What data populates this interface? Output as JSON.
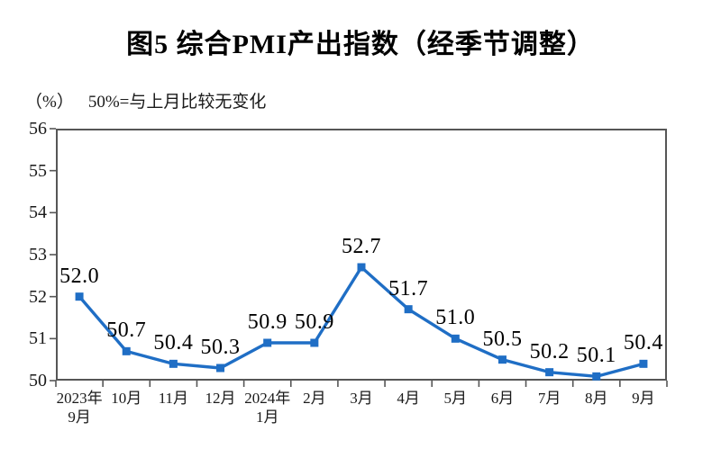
{
  "header": {
    "title": "图5  综合PMI产出指数（经季节调整）"
  },
  "axis_note": {
    "unit_label": "（%）",
    "note": "50%=与上月比较无变化"
  },
  "chart_data": {
    "type": "line",
    "title": "图5  综合PMI产出指数（经季节调整）",
    "xlabel": "",
    "ylabel": "(%)",
    "categories": [
      "2023年\n9月",
      "10月",
      "11月",
      "12月",
      "2024年\n1月",
      "2月",
      "3月",
      "4月",
      "5月",
      "6月",
      "7月",
      "8月",
      "9月"
    ],
    "series": [
      {
        "name": "综合PMI产出指数",
        "values": [
          52.0,
          50.7,
          50.4,
          50.3,
          50.9,
          50.9,
          52.7,
          51.7,
          51.0,
          50.5,
          50.2,
          50.1,
          50.4
        ]
      }
    ],
    "data_labels": [
      "52.0",
      "50.7",
      "50.4",
      "50.3",
      "50.9",
      "50.9",
      "52.7",
      "51.7",
      "51.0",
      "50.5",
      "50.2",
      "50.1",
      "50.4"
    ],
    "ylim": [
      50,
      56
    ],
    "yticks": [
      50,
      51,
      52,
      53,
      54,
      55,
      56
    ],
    "grid": false,
    "legend": "none",
    "line_color": "#1f6ec5",
    "marker": "square",
    "axis_color": "#565656",
    "label_color": "#000000"
  }
}
